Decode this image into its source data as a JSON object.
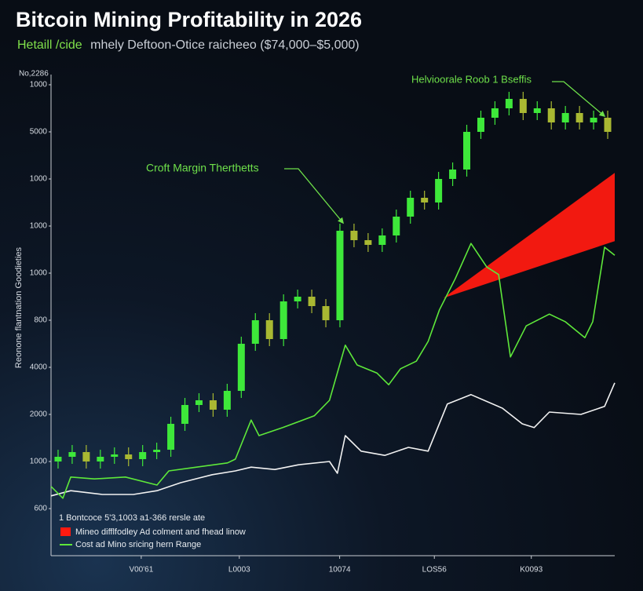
{
  "chart_data": {
    "type": "candlestick",
    "title": "Bitcoin Mining Profitability in 2026",
    "subtitle_lead": "Hetaill /cide",
    "subtitle": "mhely Deftoon-Otice raicheeo ($74,000–$5,000)",
    "y_header": "No,2286",
    "ylabel": "Reonone flantnation Goodieties",
    "ylim": [
      0,
      10.25
    ],
    "yticks": [
      {
        "value": 1,
        "label": "600"
      },
      {
        "value": 2,
        "label": "1000"
      },
      {
        "value": 3,
        "label": "2000"
      },
      {
        "value": 4,
        "label": "4000"
      },
      {
        "value": 5,
        "label": "800"
      },
      {
        "value": 6,
        "label": "1000"
      },
      {
        "value": 7,
        "label": "1000"
      },
      {
        "value": 8,
        "label": "1000"
      },
      {
        "value": 9,
        "label": "5000"
      },
      {
        "value": 10,
        "label": "1000"
      }
    ],
    "xlim": [
      0,
      100
    ],
    "xticks": [
      {
        "value": 16,
        "label": "V00'61"
      },
      {
        "value": 33.4,
        "label": "L0003"
      },
      {
        "value": 51.2,
        "label": "10074"
      },
      {
        "value": 68,
        "label": "LOS56"
      },
      {
        "value": 85.2,
        "label": "K0093"
      }
    ],
    "candles": {
      "up_color": "#3ee83a",
      "down_color": "#a9b832",
      "x": [
        1.25,
        3.75,
        6.25,
        8.75,
        11.25,
        13.75,
        16.25,
        18.75,
        21.25,
        23.75,
        26.25,
        28.75,
        31.25,
        33.75,
        36.25,
        38.75,
        41.25,
        43.75,
        46.25,
        48.75,
        51.25,
        53.75,
        56.25,
        58.75,
        61.25,
        63.75,
        66.25,
        68.75,
        71.25,
        73.75,
        76.25,
        78.75,
        81.25,
        83.75,
        86.25,
        88.75,
        91.25,
        93.75,
        96.25,
        98.75
      ],
      "open": [
        2.0,
        2.1,
        2.2,
        2.0,
        2.1,
        2.15,
        2.05,
        2.2,
        2.25,
        2.8,
        3.2,
        3.3,
        3.1,
        3.5,
        4.5,
        5.0,
        4.6,
        5.4,
        5.5,
        5.3,
        5.0,
        6.9,
        6.7,
        6.6,
        6.8,
        7.2,
        7.6,
        7.5,
        8.0,
        8.2,
        9.0,
        9.3,
        9.5,
        9.7,
        9.4,
        9.5,
        9.2,
        9.4,
        9.2,
        9.3
      ],
      "high": [
        2.25,
        2.35,
        2.35,
        2.25,
        2.3,
        2.3,
        2.35,
        2.4,
        2.95,
        3.35,
        3.45,
        3.45,
        3.65,
        4.65,
        5.15,
        5.15,
        5.55,
        5.65,
        5.65,
        5.45,
        7.05,
        7.05,
        6.85,
        6.95,
        7.35,
        7.75,
        7.75,
        8.15,
        8.35,
        9.15,
        9.45,
        9.65,
        9.85,
        9.85,
        9.65,
        9.65,
        9.55,
        9.55,
        9.45,
        9.45
      ],
      "low": [
        1.85,
        1.95,
        1.85,
        1.85,
        1.95,
        1.9,
        1.9,
        2.05,
        2.1,
        2.65,
        3.05,
        2.95,
        2.95,
        3.35,
        4.35,
        4.45,
        4.45,
        5.25,
        5.15,
        4.85,
        4.85,
        6.55,
        6.45,
        6.45,
        6.65,
        7.05,
        7.35,
        7.35,
        7.85,
        8.05,
        8.85,
        9.15,
        9.35,
        9.25,
        9.25,
        9.05,
        9.05,
        9.05,
        9.05,
        8.85
      ],
      "close": [
        2.1,
        2.2,
        2.0,
        2.1,
        2.15,
        2.05,
        2.2,
        2.25,
        2.8,
        3.2,
        3.3,
        3.1,
        3.5,
        4.5,
        5.0,
        4.6,
        5.4,
        5.5,
        5.3,
        5.0,
        6.9,
        6.7,
        6.6,
        6.8,
        7.2,
        7.6,
        7.5,
        8.0,
        8.2,
        9.0,
        9.3,
        9.5,
        9.7,
        9.4,
        9.5,
        9.2,
        9.4,
        9.2,
        9.3,
        9.0
      ]
    },
    "series": [
      {
        "name": "1 Bontcoce 5'3,1003 a1-366 rersle ate",
        "color": "#f2f2f2",
        "x": [
          0,
          3.5,
          9.1,
          14.6,
          18.8,
          23.0,
          28.6,
          32.7,
          35.5,
          39.7,
          43.9,
          49.4,
          50.8,
          52.2,
          55.0,
          59.2,
          63.4,
          66.9,
          70.3,
          74.5,
          80.1,
          83.6,
          85.7,
          88.4,
          94.0,
          98.2,
          100
        ],
        "values": [
          1.27,
          1.38,
          1.3,
          1.3,
          1.38,
          1.55,
          1.72,
          1.8,
          1.88,
          1.83,
          1.93,
          2.0,
          1.75,
          2.55,
          2.22,
          2.13,
          2.3,
          2.22,
          3.22,
          3.42,
          3.13,
          2.8,
          2.72,
          3.05,
          3.0,
          3.17,
          3.67
        ]
      },
      {
        "name": "Cost ad Mino sricing hern Range",
        "color": "#5ee83a",
        "x": [
          0,
          2.1,
          3.5,
          7.7,
          13.2,
          18.8,
          20.9,
          25.8,
          31.3,
          32.7,
          35.5,
          36.9,
          41.1,
          46.7,
          49.4,
          52.2,
          54.3,
          57.8,
          59.9,
          62.0,
          64.8,
          66.9,
          68.9,
          71.7,
          74.5,
          77.3,
          79.4,
          81.5,
          84.3,
          88.4,
          91.2,
          94.7,
          96.1,
          98.2,
          100
        ],
        "values": [
          1.47,
          1.22,
          1.67,
          1.63,
          1.67,
          1.5,
          1.8,
          1.88,
          1.97,
          2.05,
          2.88,
          2.55,
          2.72,
          2.97,
          3.3,
          4.47,
          4.05,
          3.88,
          3.63,
          3.97,
          4.13,
          4.55,
          5.22,
          5.88,
          6.63,
          6.13,
          5.97,
          4.22,
          4.88,
          5.13,
          4.97,
          4.63,
          4.97,
          6.55,
          6.38
        ]
      }
    ],
    "band": {
      "name": "Mineo difflfodley Ad colment and fhead linow",
      "color": "#ff1a10",
      "x": [
        69.6,
        100
      ],
      "lower": [
        5.47,
        6.68
      ],
      "upper": [
        5.47,
        8.13
      ]
    },
    "annotations": [
      {
        "text": "Croft Margin Therthetts",
        "color": "#6ee04a"
      },
      {
        "text": "Helvioorale Roob 1 Bseffis",
        "color": "#6ee04a"
      }
    ]
  }
}
